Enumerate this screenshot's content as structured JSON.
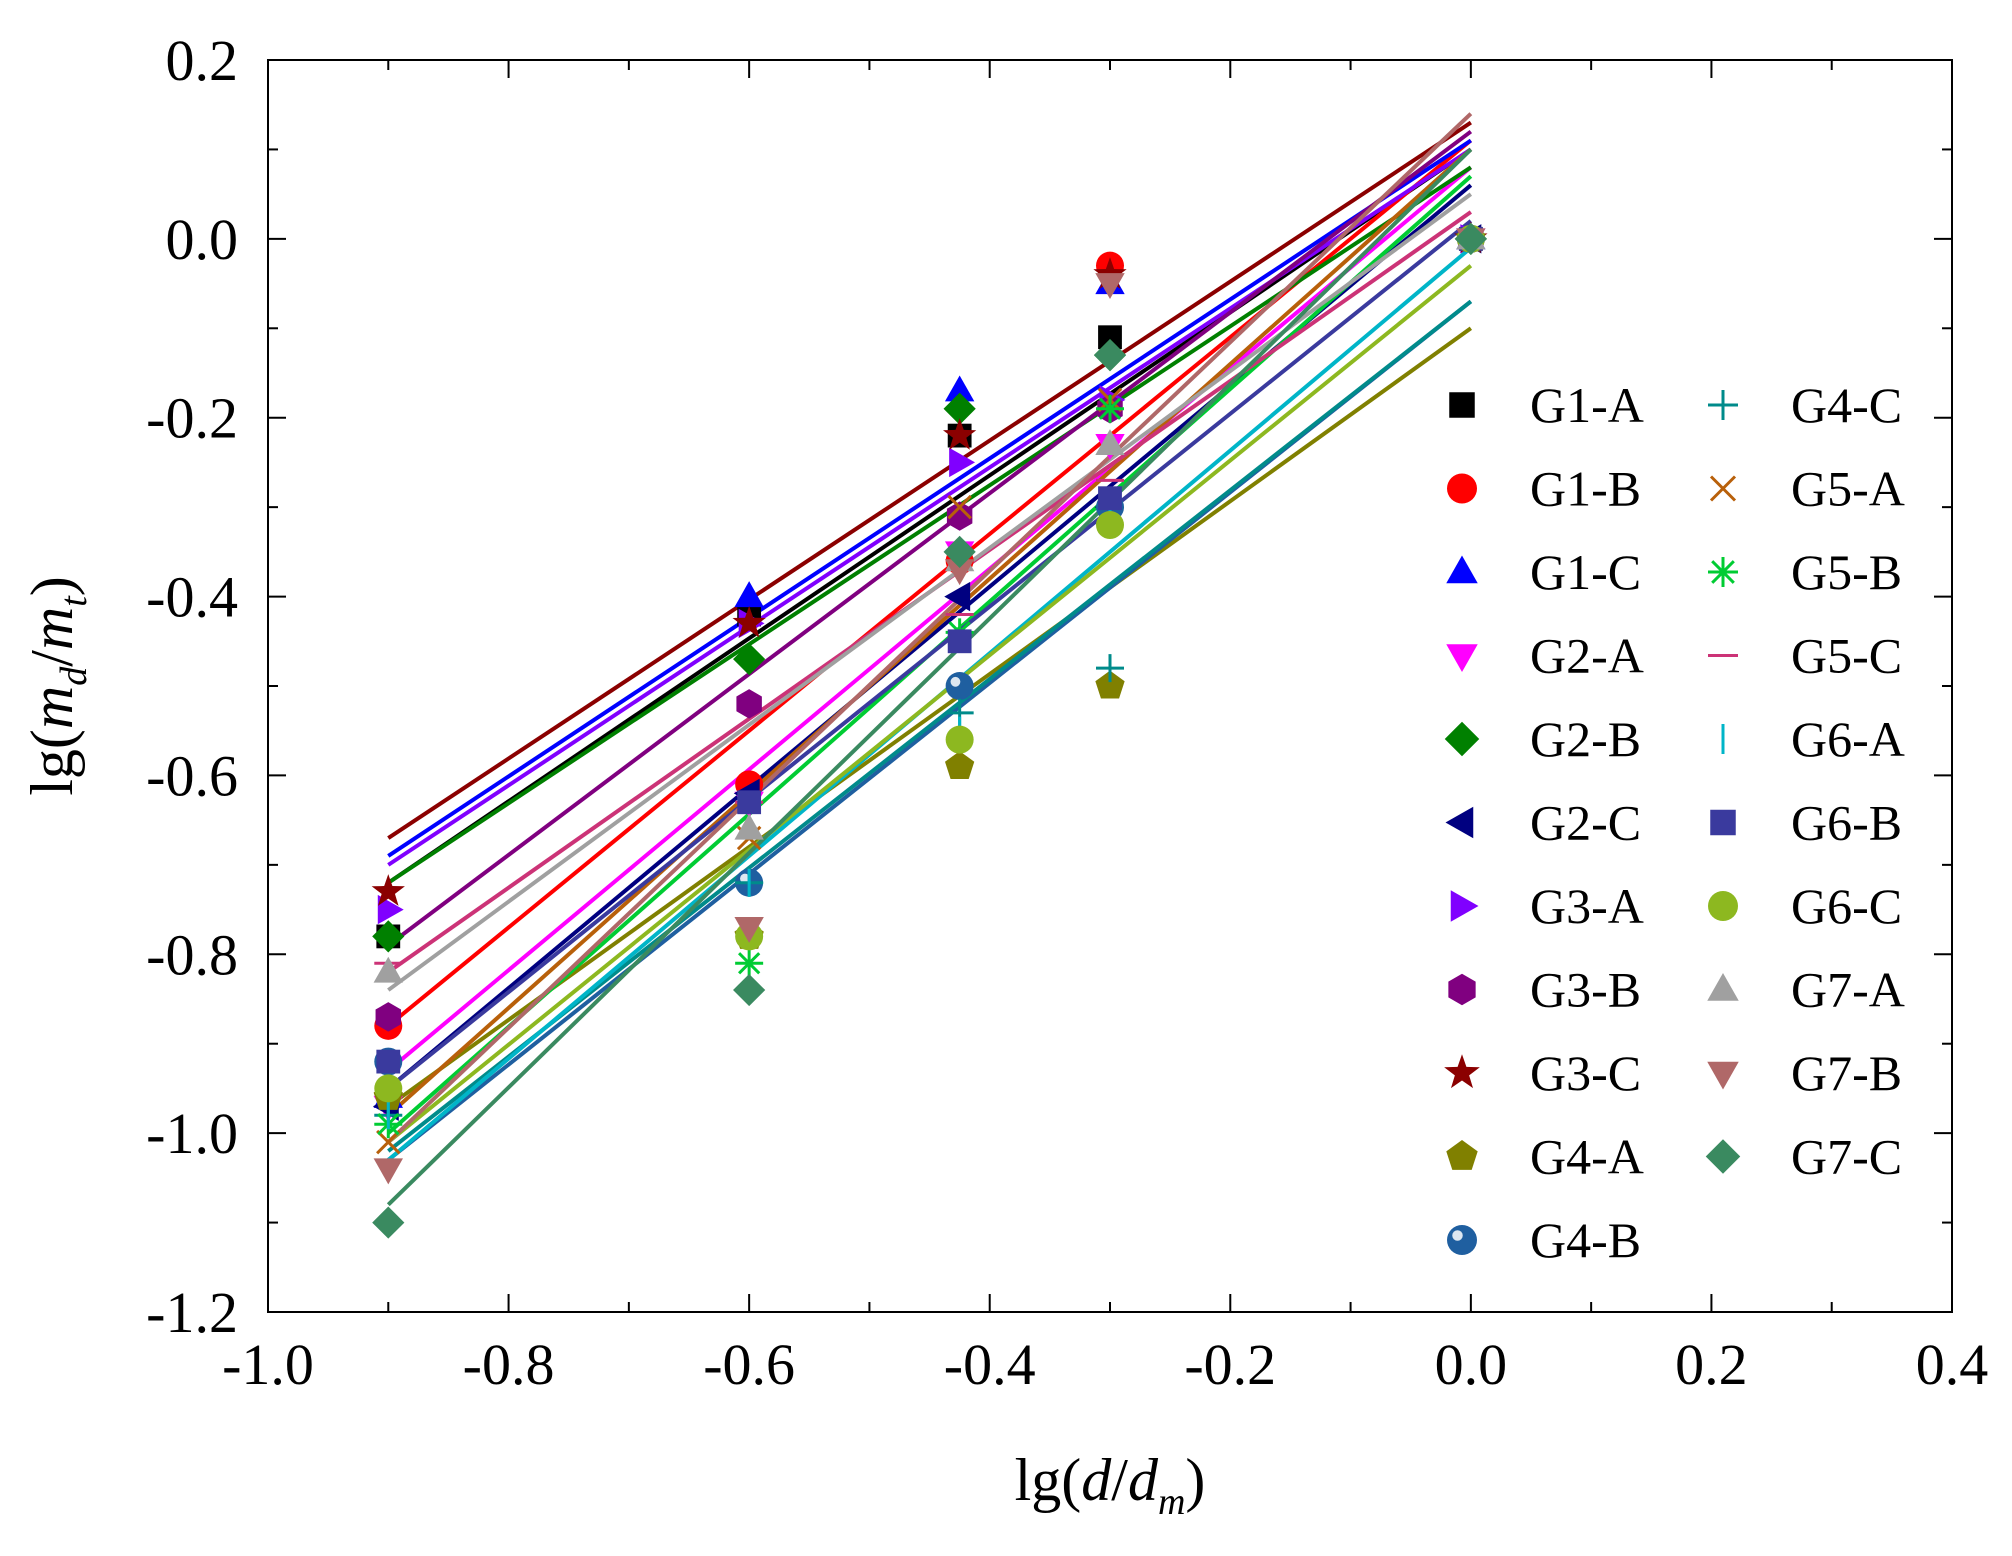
{
  "chart_data": {
    "type": "scatter",
    "xlabel": {
      "prefix": "lg(",
      "var1": "d",
      "sep": "/",
      "var2": "d",
      "sub2": "m",
      "suffix": ")"
    },
    "ylabel": {
      "prefix": "lg(",
      "var1": "m",
      "sub1": "d",
      "sep": "/",
      "var2": "m",
      "sub2": "t",
      "suffix": ")"
    },
    "xlim": [
      -1.0,
      0.4
    ],
    "ylim": [
      -1.2,
      0.2
    ],
    "xticks": [
      -1.0,
      -0.8,
      -0.6,
      -0.4,
      -0.2,
      0.0,
      0.2,
      0.4
    ],
    "xtick_labels": [
      "-1.0",
      "-0.8",
      "-0.6",
      "-0.4",
      "-0.2",
      "0.0",
      "0.2",
      "0.4"
    ],
    "yticks": [
      -1.2,
      -1.0,
      -0.8,
      -0.6,
      -0.4,
      -0.2,
      0.0,
      0.2
    ],
    "ytick_labels": [
      "-1.2",
      "-1.0",
      "-0.8",
      "-0.6",
      "-0.4",
      "-0.2",
      "0.0",
      "0.2"
    ],
    "x": [
      -0.9,
      -0.6,
      -0.425,
      -0.3,
      0.0
    ],
    "legend_position": "right, two columns",
    "series": [
      {
        "name": "G1-A",
        "marker": "square",
        "color": "#000000",
        "y": [
          -0.78,
          -0.42,
          -0.22,
          -0.11,
          0.0
        ],
        "fit": [
          -0.72,
          0.1
        ]
      },
      {
        "name": "G1-B",
        "marker": "circle",
        "color": "#ff0000",
        "y": [
          -0.88,
          -0.61,
          -0.36,
          -0.03,
          0.0
        ],
        "fit": [
          -0.88,
          0.11
        ]
      },
      {
        "name": "G1-C",
        "marker": "triangle-up",
        "color": "#0000ff",
        "y": [
          -0.96,
          -0.4,
          -0.17,
          -0.05,
          0.0
        ],
        "fit": [
          -0.69,
          0.11
        ]
      },
      {
        "name": "G2-A",
        "marker": "triangle-down",
        "color": "#ff00ff",
        "y": [
          -0.97,
          -0.63,
          -0.35,
          -0.23,
          0.0
        ],
        "fit": [
          -0.93,
          0.08
        ]
      },
      {
        "name": "G2-B",
        "marker": "diamond",
        "color": "#008000",
        "y": [
          -0.78,
          -0.47,
          -0.19,
          -0.13,
          0.0
        ],
        "fit": [
          -0.72,
          0.08
        ]
      },
      {
        "name": "G2-C",
        "marker": "triangle-left",
        "color": "#000080",
        "y": [
          -0.97,
          -0.62,
          -0.4,
          -0.3,
          0.0
        ],
        "fit": [
          -0.95,
          0.06
        ]
      },
      {
        "name": "G3-A",
        "marker": "triangle-right",
        "color": "#8000ff",
        "y": [
          -0.75,
          -0.43,
          -0.25,
          -0.18,
          0.0
        ],
        "fit": [
          -0.7,
          0.1
        ]
      },
      {
        "name": "G3-B",
        "marker": "hexagon",
        "color": "#800080",
        "y": [
          -0.87,
          -0.52,
          -0.31,
          -0.19,
          0.0
        ],
        "fit": [
          -0.79,
          0.12
        ]
      },
      {
        "name": "G3-C",
        "marker": "star",
        "color": "#8b0000",
        "y": [
          -0.73,
          -0.43,
          -0.22,
          -0.04,
          0.0
        ],
        "fit": [
          -0.67,
          0.13
        ]
      },
      {
        "name": "G4-A",
        "marker": "pentagon",
        "color": "#808000",
        "y": [
          -0.96,
          -0.78,
          -0.59,
          -0.5,
          0.0
        ],
        "fit": [
          -0.97,
          -0.1
        ]
      },
      {
        "name": "G4-B",
        "marker": "sphere",
        "color": "#1f5fa0",
        "y": [
          -0.92,
          -0.72,
          -0.5,
          -0.3,
          0.0
        ],
        "fit": [
          -1.03,
          -0.07
        ]
      },
      {
        "name": "G4-C",
        "marker": "plus",
        "color": "#008b8b",
        "y": [
          -0.98,
          -0.72,
          -0.53,
          -0.48,
          0.0
        ],
        "fit": [
          -1.02,
          -0.07
        ]
      },
      {
        "name": "G5-A",
        "marker": "x",
        "color": "#b8600a",
        "y": [
          -1.01,
          -0.67,
          -0.3,
          -0.18,
          0.0
        ],
        "fit": [
          -0.98,
          0.1
        ]
      },
      {
        "name": "G5-B",
        "marker": "asterisk",
        "color": "#00cc33",
        "y": [
          -0.99,
          -0.81,
          -0.44,
          -0.19,
          0.0
        ],
        "fit": [
          -1.0,
          0.07
        ]
      },
      {
        "name": "G5-C",
        "marker": "dash",
        "color": "#cc3377",
        "y": [
          -0.81,
          -0.63,
          -0.42,
          -0.27,
          0.0
        ],
        "fit": [
          -0.82,
          0.03
        ]
      },
      {
        "name": "G6-A",
        "marker": "bar",
        "color": "#00b5c8",
        "y": [
          -0.98,
          -0.72,
          -0.55,
          -0.3,
          0.0
        ],
        "fit": [
          -1.03,
          -0.01
        ]
      },
      {
        "name": "G6-B",
        "marker": "square",
        "color": "#3a3a9e",
        "y": [
          -0.92,
          -0.63,
          -0.45,
          -0.29,
          0.0
        ],
        "fit": [
          -0.95,
          0.02
        ]
      },
      {
        "name": "G6-C",
        "marker": "circle",
        "color": "#8db820",
        "y": [
          -0.95,
          -0.78,
          -0.56,
          -0.32,
          0.0
        ],
        "fit": [
          -1.01,
          -0.03
        ]
      },
      {
        "name": "G7-A",
        "marker": "triangle-up",
        "color": "#a0a0a0",
        "y": [
          -0.82,
          -0.66,
          -0.36,
          -0.23,
          0.0
        ],
        "fit": [
          -0.84,
          0.05
        ]
      },
      {
        "name": "G7-B",
        "marker": "triangle-down",
        "color": "#b06868",
        "y": [
          -1.04,
          -0.77,
          -0.37,
          -0.05,
          0.0
        ],
        "fit": [
          -1.01,
          0.14
        ]
      },
      {
        "name": "G7-C",
        "marker": "diamond",
        "color": "#3a8a60",
        "y": [
          -1.1,
          -0.84,
          -0.35,
          -0.13,
          0.0
        ],
        "fit": [
          -1.08,
          0.1
        ]
      }
    ]
  }
}
